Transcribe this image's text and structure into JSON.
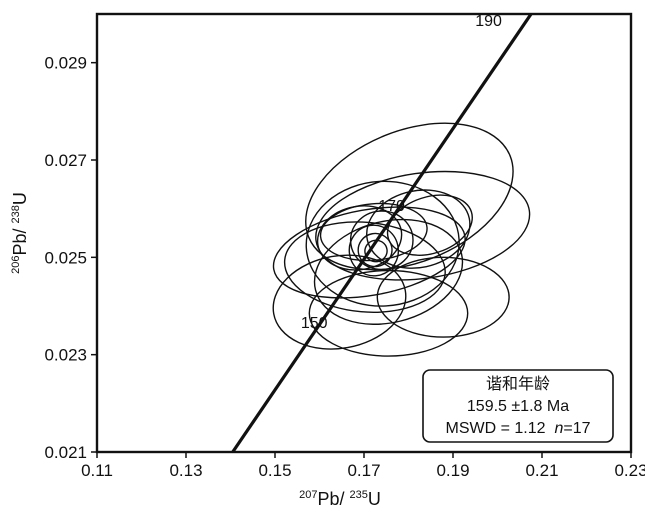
{
  "chart_data": {
    "type": "scatter",
    "subtype": "U-Pb concordia diagram with error ellipses",
    "title": "",
    "xlabel": {
      "pre": "207",
      "mid": "Pb/ ",
      "sup2": "235",
      "post": "U"
    },
    "ylabel": {
      "pre": "206",
      "mid": "Pb/ ",
      "sup2": "238",
      "post": "U"
    },
    "xlim": [
      0.11,
      0.23
    ],
    "ylim": [
      0.021,
      0.03
    ],
    "xticks": [
      "0.11",
      "0.13",
      "0.15",
      "0.17",
      "0.19",
      "0.21",
      "0.23"
    ],
    "yticks": [
      "0.021",
      "0.023",
      "0.025",
      "0.027",
      "0.029"
    ],
    "xtick_values": [
      0.11,
      0.13,
      0.15,
      0.17,
      0.19,
      0.21,
      0.23
    ],
    "ytick_values": [
      0.021,
      0.023,
      0.025,
      0.027,
      0.029
    ],
    "concordia": {
      "points": [
        [
          0.1405,
          0.021
        ],
        [
          0.2083,
          0.0301
        ]
      ],
      "age_labels": [
        {
          "text": "150",
          "x": 0.1588,
          "y": 0.02355
        },
        {
          "text": "170",
          "x": 0.1762,
          "y": 0.02595
        },
        {
          "text": "190",
          "x": 0.198,
          "y": 0.02975
        }
      ]
    },
    "ellipses": [
      {
        "cx": 0.1802,
        "cy": 0.02625,
        "rx": 0.0244,
        "ry": 0.00135,
        "angle": 22
      },
      {
        "cx": 0.1832,
        "cy": 0.02565,
        "rx": 0.0242,
        "ry": 0.00108,
        "angle": 8
      },
      {
        "cx": 0.1712,
        "cy": 0.0251,
        "rx": 0.0218,
        "ry": 0.00088,
        "angle": 10
      },
      {
        "cx": 0.1742,
        "cy": 0.02528,
        "rx": 0.0172,
        "ry": 0.00128,
        "angle": 3
      },
      {
        "cx": 0.1702,
        "cy": 0.0248,
        "rx": 0.0181,
        "ry": 0.00092,
        "angle": -5
      },
      {
        "cx": 0.1755,
        "cy": 0.0247,
        "rx": 0.0169,
        "ry": 0.00104,
        "angle": 14
      },
      {
        "cx": 0.1755,
        "cy": 0.02385,
        "rx": 0.0178,
        "ry": 0.00088,
        "angle": 0
      },
      {
        "cx": 0.1878,
        "cy": 0.02418,
        "rx": 0.0148,
        "ry": 0.00082,
        "angle": 0
      },
      {
        "cx": 0.1822,
        "cy": 0.02558,
        "rx": 0.0117,
        "ry": 0.00079,
        "angle": 12
      },
      {
        "cx": 0.169,
        "cy": 0.0254,
        "rx": 0.0095,
        "ry": 0.00065,
        "angle": 10
      },
      {
        "cx": 0.1722,
        "cy": 0.02552,
        "rx": 0.012,
        "ry": 0.00058,
        "angle": 5
      },
      {
        "cx": 0.1848,
        "cy": 0.02566,
        "rx": 0.0098,
        "ry": 0.00058,
        "angle": 18
      },
      {
        "cx": 0.1645,
        "cy": 0.02408,
        "rx": 0.015,
        "ry": 0.00095,
        "angle": 10
      },
      {
        "cx": 0.174,
        "cy": 0.02535,
        "rx": 0.007,
        "ry": 0.0006,
        "angle": 0
      },
      {
        "cx": 0.1722,
        "cy": 0.02514,
        "rx": 0.0055,
        "ry": 0.00052,
        "angle": 8
      },
      {
        "cx": 0.1725,
        "cy": 0.02515,
        "rx": 0.0038,
        "ry": 0.00034,
        "angle": 10
      },
      {
        "cx": 0.1727,
        "cy": 0.02513,
        "rx": 0.0025,
        "ry": 0.00022,
        "angle": 10
      }
    ],
    "legend_box": {
      "placement": "bottom-right",
      "title": "谐和年龄",
      "age": "159.5 ±1.8 Ma",
      "mswd_prefix": "MSWD = 1.12  ",
      "n_label": "n",
      "n_value": "=17"
    },
    "grid": false
  }
}
